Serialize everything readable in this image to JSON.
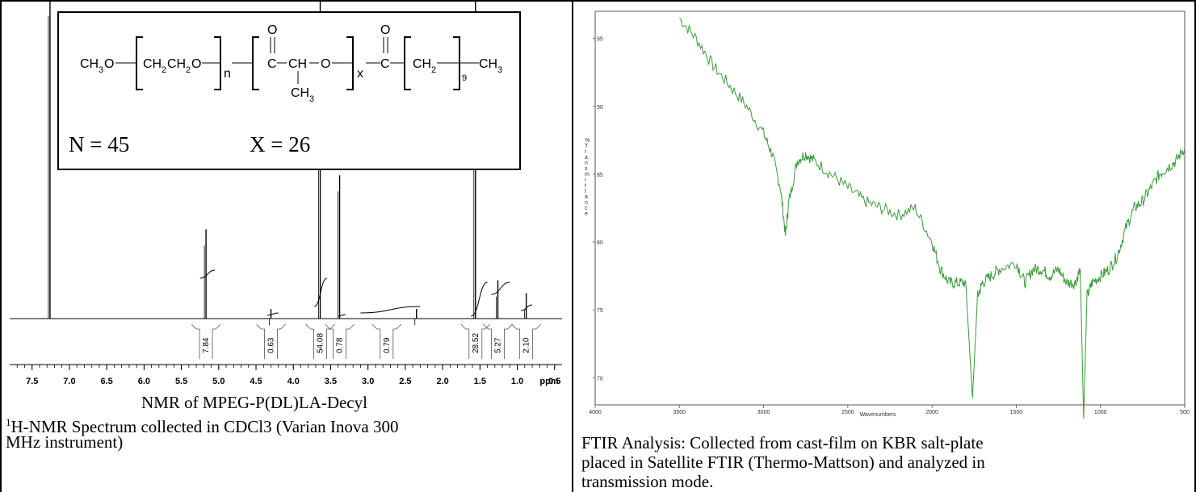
{
  "nmr": {
    "caption_title": "NMR of MPEG-P(DL)LA-Decyl",
    "caption_sup": "1",
    "caption_line1": "H-NMR Spectrum collected in CDCl3 (Varian Inova 300",
    "caption_line2": "MHz instrument)",
    "structure": {
      "n_label": "N = 45",
      "x_label": "X = 26"
    },
    "axis_unit": "ppm"
  },
  "ftir": {
    "caption_line1": "FTIR Analysis: Collected from cast-film on KBR salt-plate",
    "caption_line2": "placed in Satellite FTIR (Thermo-Mattson) and analyzed in",
    "caption_line3": "transmission mode.",
    "ylabel": "% Transmittance",
    "xlabel": "Wavenumbers"
  },
  "chart_data": [
    {
      "type": "line",
      "title": "NMR of MPEG-P(DL)LA-Decyl",
      "xlabel": "ppm",
      "ylabel": "",
      "xlim": [
        7.8,
        0.4
      ],
      "x_ticks": [
        "7.5",
        "7.0",
        "6.5",
        "6.0",
        "5.5",
        "5.0",
        "4.5",
        "4.0",
        "3.5",
        "3.0",
        "2.5",
        "2.0",
        "1.5",
        "1.0",
        "0.5"
      ],
      "peaks": [
        {
          "ppm": 7.26,
          "height": 1.0
        },
        {
          "ppm": 5.17,
          "height": 0.28
        },
        {
          "ppm": 4.3,
          "height": 0.03
        },
        {
          "ppm": 3.64,
          "height": 1.0
        },
        {
          "ppm": 3.38,
          "height": 0.45
        },
        {
          "ppm": 2.35,
          "height": 0.03
        },
        {
          "ppm": 1.56,
          "height": 1.0
        },
        {
          "ppm": 1.26,
          "height": 0.12
        },
        {
          "ppm": 0.88,
          "height": 0.08
        }
      ],
      "integrals": [
        {
          "center": 5.17,
          "value": "7.84"
        },
        {
          "center": 4.3,
          "value": "0.63"
        },
        {
          "center": 3.64,
          "value": "54.08"
        },
        {
          "center": 3.38,
          "value": "0.78"
        },
        {
          "center": 2.75,
          "value": "0.79"
        },
        {
          "center": 1.56,
          "value": "28.52"
        },
        {
          "center": 1.26,
          "value": "5.27"
        },
        {
          "center": 0.88,
          "value": "2.10"
        }
      ]
    },
    {
      "type": "line",
      "title": "",
      "xlabel": "Wavenumbers",
      "ylabel": "% Transmittance",
      "xlim": [
        4000,
        500
      ],
      "ylim": [
        68,
        97
      ],
      "x_ticks": [
        "4000",
        "3500",
        "3000",
        "2500",
        "2000",
        "1500",
        "1000",
        "500"
      ],
      "y_ticks": [
        "95",
        "90",
        "85",
        "80",
        "75",
        "70"
      ],
      "x": [
        3500,
        3400,
        3300,
        3200,
        3100,
        3000,
        2950,
        2900,
        2870,
        2850,
        2800,
        2750,
        2700,
        2600,
        2500,
        2400,
        2300,
        2200,
        2100,
        2000,
        1950,
        1900,
        1850,
        1800,
        1760,
        1730,
        1700,
        1650,
        1600,
        1500,
        1450,
        1400,
        1350,
        1300,
        1250,
        1200,
        1150,
        1120,
        1100,
        1080,
        1050,
        1000,
        950,
        900,
        850,
        800,
        750,
        700,
        650,
        600,
        550,
        500
      ],
      "y": [
        96.5,
        95,
        93,
        91.5,
        90,
        88,
        86.5,
        84,
        80.5,
        83,
        86,
        86.5,
        86,
        85,
        84,
        83,
        82.5,
        82,
        82.5,
        80,
        78,
        77,
        77,
        77,
        68.5,
        76,
        77,
        77.5,
        78,
        78.5,
        77,
        78,
        78,
        77.5,
        78,
        77,
        77,
        78,
        67,
        76,
        77,
        77.5,
        78,
        79,
        81,
        82.5,
        83,
        84,
        85,
        85.5,
        86,
        87
      ]
    }
  ]
}
